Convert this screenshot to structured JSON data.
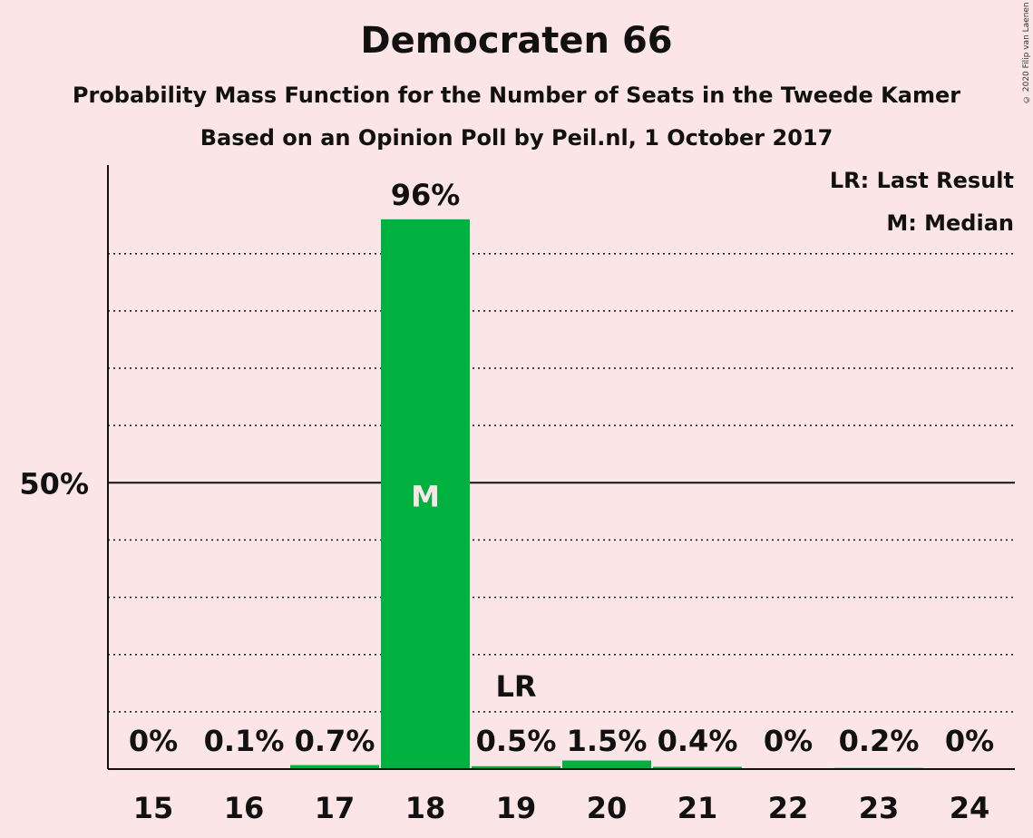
{
  "header": {
    "title": "Democraten 66",
    "subtitle1": "Probability Mass Function for the Number of Seats in the Tweede Kamer",
    "subtitle2": "Based on an Opinion Poll by Peil.nl, 1 October 2017"
  },
  "copyright": "© 2020 Filip van Laenen",
  "legend": {
    "last_result": "LR: Last Result",
    "median": "M: Median"
  },
  "colors": {
    "background": "#fbe5e6",
    "bar": "#00b140",
    "text": "#111111"
  },
  "chart_data": {
    "type": "bar",
    "categories": [
      "15",
      "16",
      "17",
      "18",
      "19",
      "20",
      "21",
      "22",
      "23",
      "24"
    ],
    "values": [
      0,
      0.1,
      0.7,
      96,
      0.5,
      1.5,
      0.4,
      0,
      0.2,
      0
    ],
    "value_labels": [
      "0%",
      "0.1%",
      "0.7%",
      "96%",
      "0.5%",
      "1.5%",
      "0.4%",
      "0%",
      "0.2%",
      "0%"
    ],
    "ylim": [
      0,
      105
    ],
    "y_tick_label": "50%",
    "y_tick_value": 50,
    "gridlines": [
      10,
      20,
      30,
      40,
      60,
      70,
      80,
      90
    ],
    "median_category": "18",
    "median_marker": "M",
    "last_result_category": "19",
    "last_result_marker": "LR",
    "legend_position": "top-right"
  }
}
